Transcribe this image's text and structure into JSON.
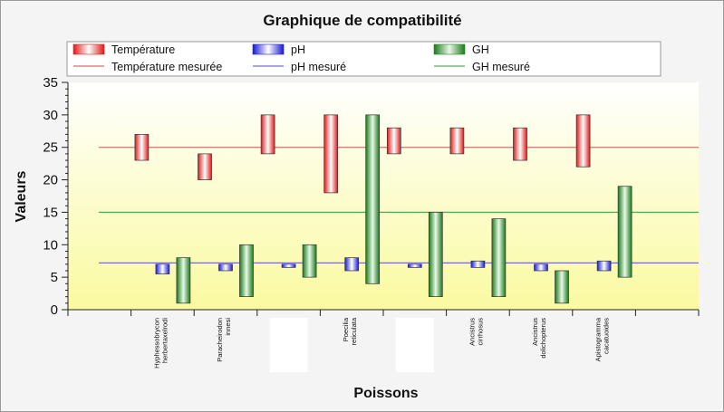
{
  "chart_data": {
    "type": "bar",
    "subtype": "floating-range-bars-with-reference-lines",
    "title": "Graphique de compatibilité",
    "xlabel": "Poissons",
    "ylabel": "Valeurs",
    "ylim": [
      0,
      35
    ],
    "yticks": [
      "0",
      "5",
      "10",
      "15",
      "20",
      "25",
      "30",
      "35"
    ],
    "grid": false,
    "legend_position": "top",
    "plot_background": [
      "#ffffff",
      "#fafaa0"
    ],
    "categories": [
      "",
      "Hyphessobrycon herbertaxelrodi",
      "Paracheirodon innesi",
      "",
      "Poecilia reticulata",
      "",
      "Ancistrus cirrhosus",
      "Ancistrus dolichopterus",
      "Apistogramma cacatuoides",
      ""
    ],
    "category_labels": [
      [],
      [
        "Hyphessobrycon",
        "herbertaxelrodi"
      ],
      [
        "Paracheirodon",
        "innesi"
      ],
      [],
      [
        "Poecilia",
        "reticulata"
      ],
      [],
      [
        "Ancistrus",
        "cirrhosus"
      ],
      [
        "Ancistrus",
        "dolichopterus"
      ],
      [
        "Apistogramma",
        "cacatuoides"
      ],
      []
    ],
    "hidden_label_slots": [
      3,
      5
    ],
    "series": [
      {
        "name": "Température",
        "color": "#e02020",
        "ranges": [
          [
            23,
            27
          ],
          [
            20,
            24
          ],
          [
            24,
            30
          ],
          [
            18,
            30
          ],
          [
            24,
            28
          ],
          [
            24,
            28
          ],
          [
            23,
            28
          ],
          [
            22,
            30
          ]
        ]
      },
      {
        "name": "pH",
        "color": "#2020e0",
        "ranges": [
          [
            5.5,
            7
          ],
          [
            6,
            7
          ],
          [
            6.5,
            7
          ],
          [
            6,
            8
          ],
          [
            6.5,
            7
          ],
          [
            6.5,
            7.5
          ],
          [
            6,
            7
          ],
          [
            6,
            7.5
          ]
        ]
      },
      {
        "name": "GH",
        "color": "#208a20",
        "ranges": [
          [
            1,
            8
          ],
          [
            2,
            10
          ],
          [
            5,
            10
          ],
          [
            4,
            30
          ],
          [
            2,
            15
          ],
          [
            2,
            14
          ],
          [
            1,
            6
          ],
          [
            5,
            19
          ]
        ]
      }
    ],
    "bar_groups_category_index": [
      1,
      2,
      3,
      4,
      5,
      6,
      7,
      8
    ],
    "reference_lines": [
      {
        "name": "Température mesurée",
        "value": 25,
        "color": "#d07070"
      },
      {
        "name": "pH mesuré",
        "value": 7.2,
        "color": "#7070c8"
      },
      {
        "name": "GH mesuré",
        "value": 15,
        "color": "#60a860"
      }
    ]
  }
}
